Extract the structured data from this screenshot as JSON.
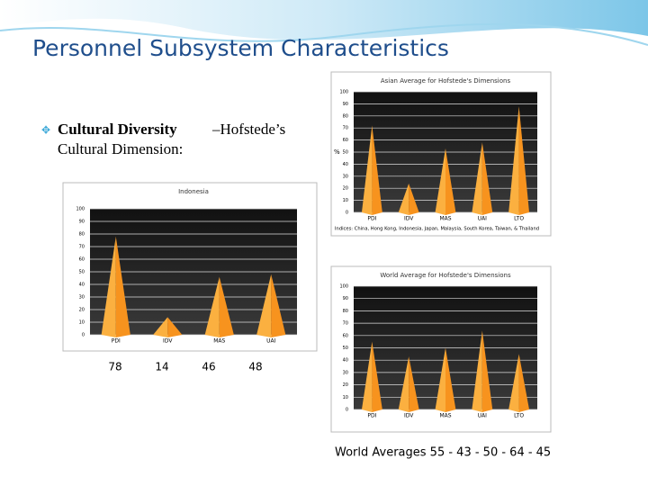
{
  "slide": {
    "title": "Personnel Subsystem Characteristics",
    "bullet": [
      "Cultural Diversity",
      "–Hofstede’s",
      "Cultural Dimension:"
    ],
    "world_caption": "World Averages 55 - 43 - 50 - 64 - 45"
  },
  "chart_data": [
    {
      "type": "bar",
      "title": "Indonesia",
      "categories": [
        "PDI",
        "IDV",
        "MAS",
        "UAI"
      ],
      "values": [
        78,
        14,
        46,
        48
      ],
      "color": "#f7931e",
      "ylim": [
        0,
        100
      ],
      "yticks": [
        0,
        10,
        20,
        30,
        40,
        50,
        60,
        70,
        80,
        90,
        100
      ],
      "grid": true
    },
    {
      "type": "bar",
      "title": "Asian Average for Hofstede's Dimensions",
      "ylabel": "%",
      "categories": [
        "PDI",
        "IDV",
        "MAS",
        "UAI",
        "LTO"
      ],
      "values": [
        72,
        24,
        53,
        58,
        88
      ],
      "color": "#f7931e",
      "ylim": [
        0,
        100
      ],
      "yticks": [
        0,
        10,
        20,
        30,
        40,
        50,
        60,
        70,
        80,
        90,
        100
      ],
      "grid": true,
      "footnote": "Indices: China, Hong Kong, Indonesia, Japan, Malaysia, South Korea, Taiwan, & Thailand"
    },
    {
      "type": "bar",
      "title": "World Average for Hofstede's Dimensions",
      "categories": [
        "PDI",
        "IDV",
        "MAS",
        "UAI",
        "LTO"
      ],
      "values": [
        55,
        43,
        50,
        64,
        45
      ],
      "color": "#f7931e",
      "ylim": [
        0,
        100
      ],
      "yticks": [
        0,
        10,
        20,
        30,
        40,
        50,
        60,
        70,
        80,
        90,
        100
      ],
      "grid": true
    }
  ]
}
